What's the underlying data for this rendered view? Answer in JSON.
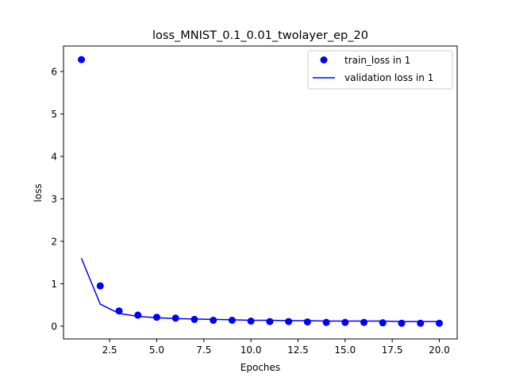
{
  "chart_data": {
    "type": "scatter+line",
    "title": "loss_MNIST_0.1_0.01_twolayer_ep_20",
    "xlabel": "Epoches",
    "ylabel": "loss",
    "xlim": [
      0.05,
      20.95
    ],
    "ylim": [
      -0.3,
      6.6
    ],
    "x_ticks": [
      2.5,
      5.0,
      7.5,
      10.0,
      12.5,
      15.0,
      17.5,
      20.0
    ],
    "x_tick_labels": [
      "2.5",
      "5.0",
      "7.5",
      "10.0",
      "12.5",
      "15.0",
      "17.5",
      "20.0"
    ],
    "y_ticks": [
      0,
      1,
      2,
      3,
      4,
      5,
      6
    ],
    "y_tick_labels": [
      "0",
      "1",
      "2",
      "3",
      "4",
      "5",
      "6"
    ],
    "grid": false,
    "legend_position": "top-right",
    "colors": {
      "series": "#0000ff",
      "axes": "#000000",
      "background": "#ffffff"
    },
    "series": [
      {
        "name": "train_loss in 1",
        "style": "markers",
        "x": [
          1,
          2,
          3,
          4,
          5,
          6,
          7,
          8,
          9,
          10,
          11,
          12,
          13,
          14,
          15,
          16,
          17,
          18,
          19,
          20
        ],
        "values": [
          6.28,
          0.95,
          0.36,
          0.26,
          0.21,
          0.19,
          0.16,
          0.14,
          0.14,
          0.12,
          0.11,
          0.11,
          0.1,
          0.09,
          0.09,
          0.09,
          0.08,
          0.07,
          0.07,
          0.07
        ]
      },
      {
        "name": "validation loss in 1",
        "style": "line",
        "x": [
          1,
          2,
          3,
          4,
          5,
          6,
          7,
          8,
          9,
          10,
          11,
          12,
          13,
          14,
          15,
          16,
          17,
          18,
          19,
          20
        ],
        "values": [
          1.6,
          0.52,
          0.3,
          0.23,
          0.2,
          0.18,
          0.17,
          0.16,
          0.15,
          0.14,
          0.14,
          0.13,
          0.13,
          0.12,
          0.12,
          0.12,
          0.12,
          0.11,
          0.11,
          0.11
        ]
      }
    ]
  }
}
